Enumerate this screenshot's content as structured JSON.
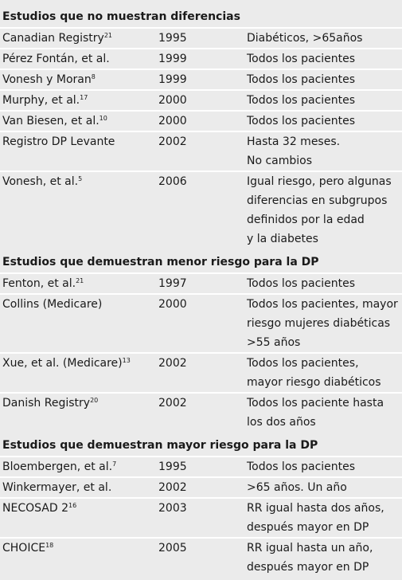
{
  "sections": [
    {
      "title": "Estudios que no muestran diferencias",
      "rows": [
        {
          "study": "Canadian Registry",
          "ref": "21",
          "year": 1995,
          "desc": [
            "Diabéticos, >65años"
          ]
        },
        {
          "study": "Pérez Fontán, et al.",
          "year": 1999,
          "desc": [
            "Todos los pacientes"
          ]
        },
        {
          "study": "Vonesh y Moran",
          "ref": "8",
          "year": 1999,
          "desc": [
            "Todos los pacientes"
          ]
        },
        {
          "study": "Murphy, et al.",
          "ref": "17",
          "year": 2000,
          "desc": [
            "Todos los pacientes"
          ]
        },
        {
          "study": "Van Biesen, et al.",
          "ref": "10",
          "year": 2000,
          "desc": [
            "Todos los pacientes"
          ]
        },
        {
          "study": "Registro DP Levante",
          "year": 2002,
          "desc": [
            "Hasta 32 meses.",
            "No cambios"
          ]
        },
        {
          "study": "Vonesh, et al.",
          "ref": "5",
          "year": 2006,
          "desc": [
            "Igual riesgo, pero algunas",
            "diferencias en subgrupos",
            "definidos por la edad",
            "y la diabetes"
          ]
        }
      ]
    },
    {
      "title": "Estudios que demuestran menor riesgo para la DP",
      "rows": [
        {
          "study": "Fenton, et al.",
          "ref": "21",
          "year": 1997,
          "desc": [
            "Todos los pacientes"
          ]
        },
        {
          "study": "Collins (Medicare)",
          "year": 2000,
          "desc": [
            "Todos los pacientes, mayor",
            "riesgo mujeres diabéticas",
            ">55 años"
          ]
        },
        {
          "study": "Xue, et al. (Medicare)",
          "ref": "13",
          "year": 2002,
          "desc": [
            "Todos los pacientes,",
            "mayor riesgo diabéticos"
          ]
        },
        {
          "study": "Danish Registry",
          "ref": "20",
          "year": 2002,
          "desc": [
            "Todos los paciente hasta",
            "los dos años"
          ]
        }
      ]
    },
    {
      "title": "Estudios que demuestran mayor riesgo para la DP",
      "rows": [
        {
          "study": "Bloembergen, et al.",
          "ref": "7",
          "year": 1995,
          "desc": [
            "Todos los pacientes"
          ]
        },
        {
          "study": "Winkermayer, et al.",
          "year": 2002,
          "desc": [
            ">65 años. Un año"
          ]
        },
        {
          "study": "NECOSAD 2",
          "ref": "16",
          "year": 2003,
          "desc": [
            "RR igual hasta dos años,",
            "después mayor en DP"
          ]
        },
        {
          "study": "CHOICE",
          "ref": "18",
          "year": 2005,
          "desc": [
            "RR igual hasta un año,",
            "después mayor en DP"
          ]
        }
      ]
    }
  ]
}
